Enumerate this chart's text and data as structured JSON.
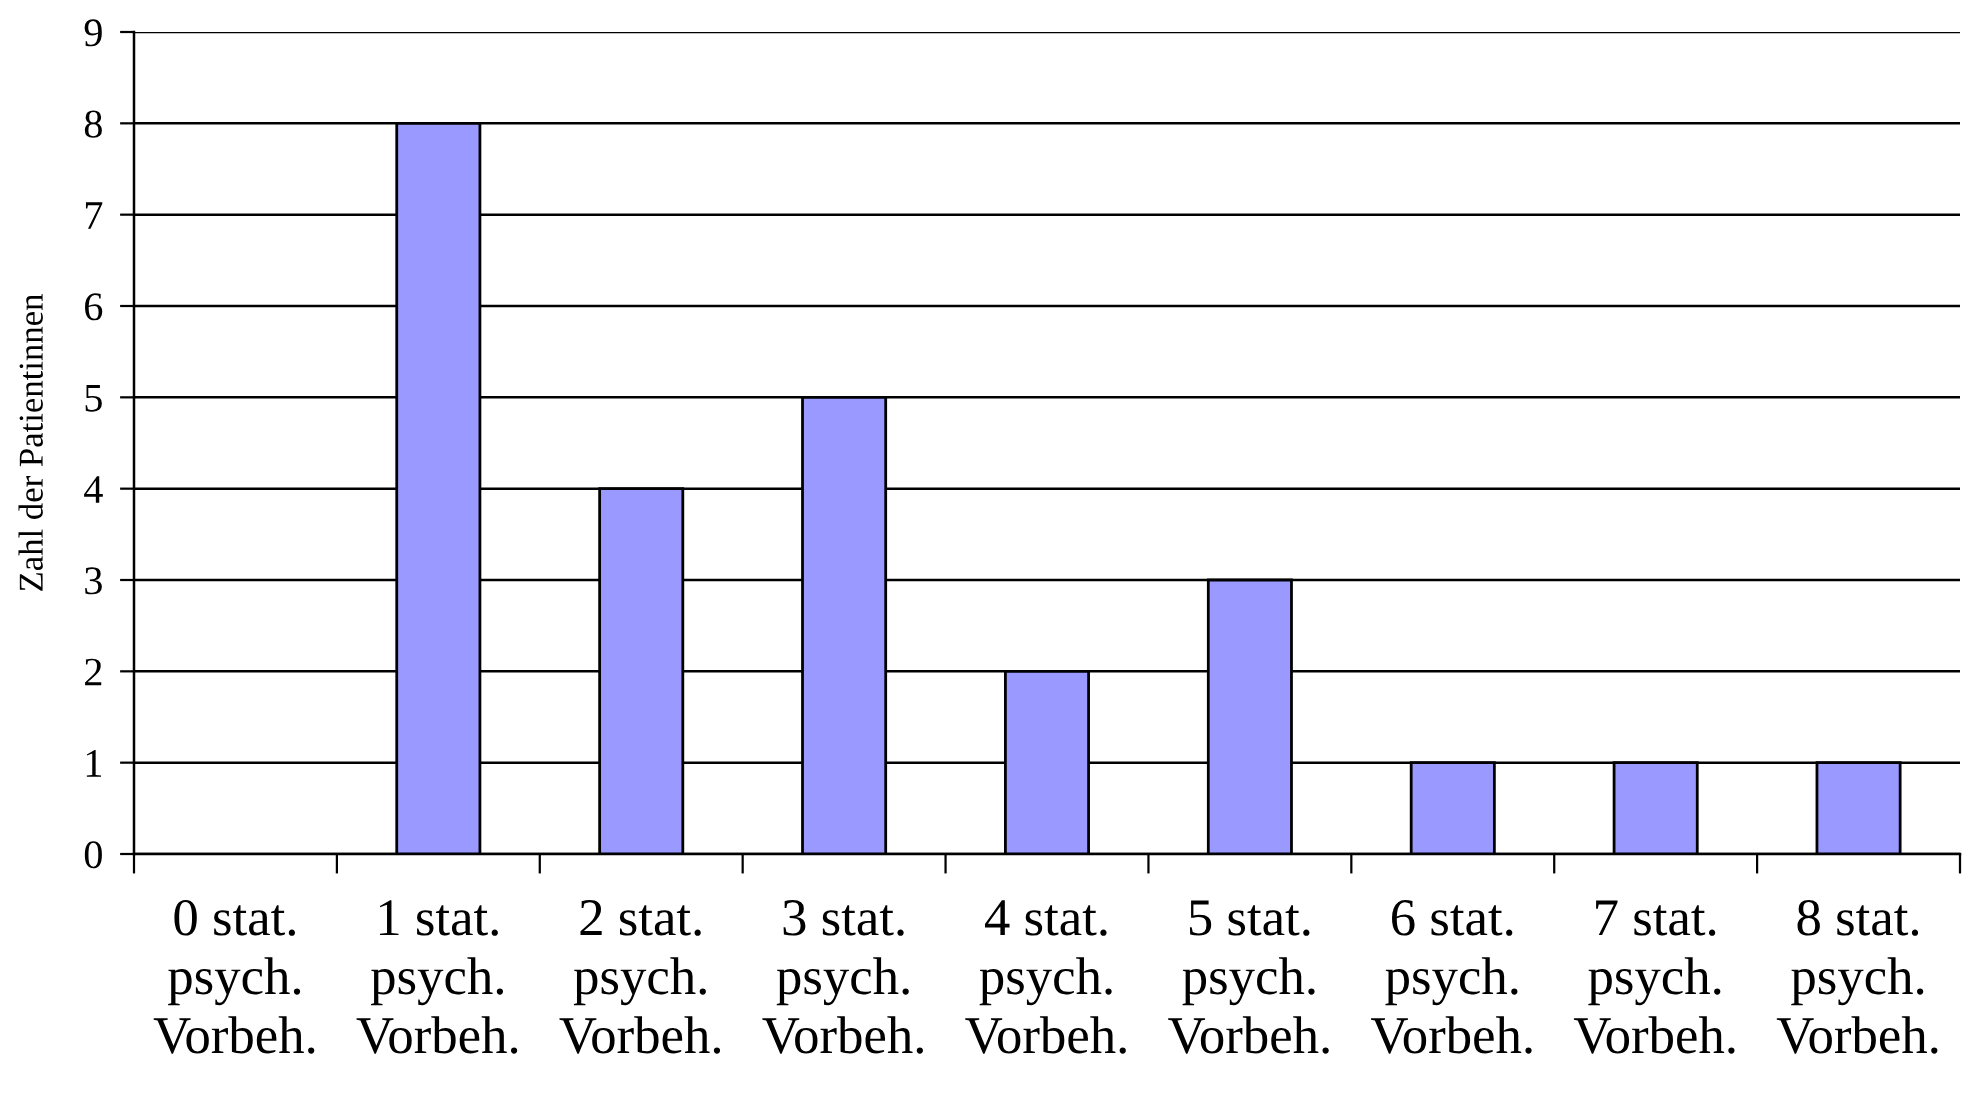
{
  "chart_data": {
    "type": "bar",
    "ylabel": "Zahl der Patientinnen",
    "categories": [
      "0 stat.\npsych.\nVorbeh.",
      "1 stat.\npsych.\nVorbeh.",
      "2 stat.\npsych.\nVorbeh.",
      "3 stat.\npsych.\nVorbeh.",
      "4 stat.\npsych.\nVorbeh.",
      "5 stat.\npsych.\nVorbeh.",
      "6 stat.\npsych.\nVorbeh.",
      "7 stat.\npsych.\nVorbeh.",
      "8 stat.\npsych.\nVorbeh."
    ],
    "values": [
      0,
      8,
      4,
      5,
      2,
      3,
      1,
      1,
      1
    ],
    "color": "#9999ff",
    "ylim": [
      0,
      9
    ],
    "yticks": [
      0,
      1,
      2,
      3,
      4,
      5,
      6,
      7,
      8,
      9
    ],
    "grid": "y"
  }
}
